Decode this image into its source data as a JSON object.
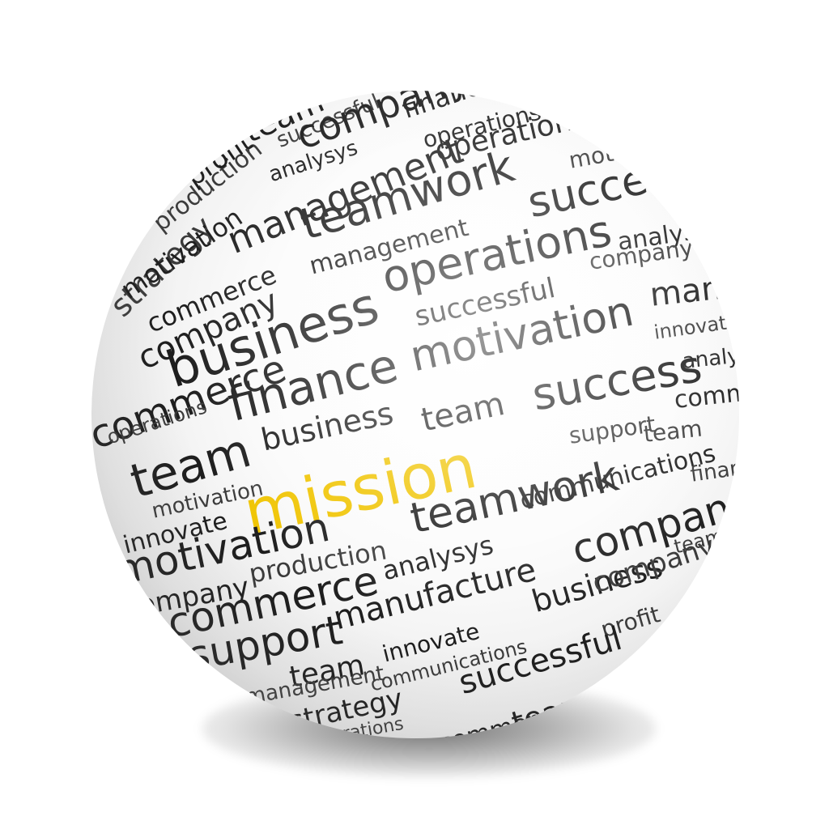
{
  "words": {
    "w1": "finance",
    "w2": "company",
    "w3": "team",
    "w4": "operations",
    "w5": "profit",
    "w6": "successful",
    "w7": "commerce",
    "w8": "analysys",
    "w9": "production",
    "w10": "management",
    "w11": "operations",
    "w12": "motivation",
    "w13": "teamwork",
    "w14": "motivation",
    "w15": "strategy",
    "w16": "commerce",
    "w17": "management",
    "w18": "success",
    "w19": "analysys",
    "w20": "company",
    "w21": "operations",
    "w22": "company",
    "w23": "manufacture",
    "w24": "business",
    "w25": "successful",
    "w26": "motivation",
    "w27": "innovate",
    "w28": "commerce",
    "w29": "finance",
    "w30": "analysys",
    "w31": "team",
    "w32": "success",
    "w33": "commerce",
    "w34": "operations",
    "w35": "team",
    "w36": "business",
    "w37": "support",
    "w38": "team",
    "w39": "mission",
    "w40": "motivation",
    "w41": "innovate",
    "w42": "teamwork",
    "w43": "communications",
    "w44": "company",
    "w45": "motivation",
    "w46": "production",
    "w47": "analysys",
    "w48": "company",
    "w49": "commerce",
    "w50": "manufacture",
    "w51": "business",
    "w52": "profit",
    "w53": "support",
    "w54": "innovate",
    "w55": "team",
    "w56": "communications",
    "w57": "successful",
    "w58": "management",
    "w59": "strategy",
    "w60": "operations",
    "w61": "team",
    "w62": "commerce",
    "w63": "successful",
    "w64": "team",
    "w65": "finance",
    "w66": "company"
  },
  "colors": {
    "text": "#1d1d1d",
    "highlight": "#f0c400",
    "background": "#ffffff"
  }
}
